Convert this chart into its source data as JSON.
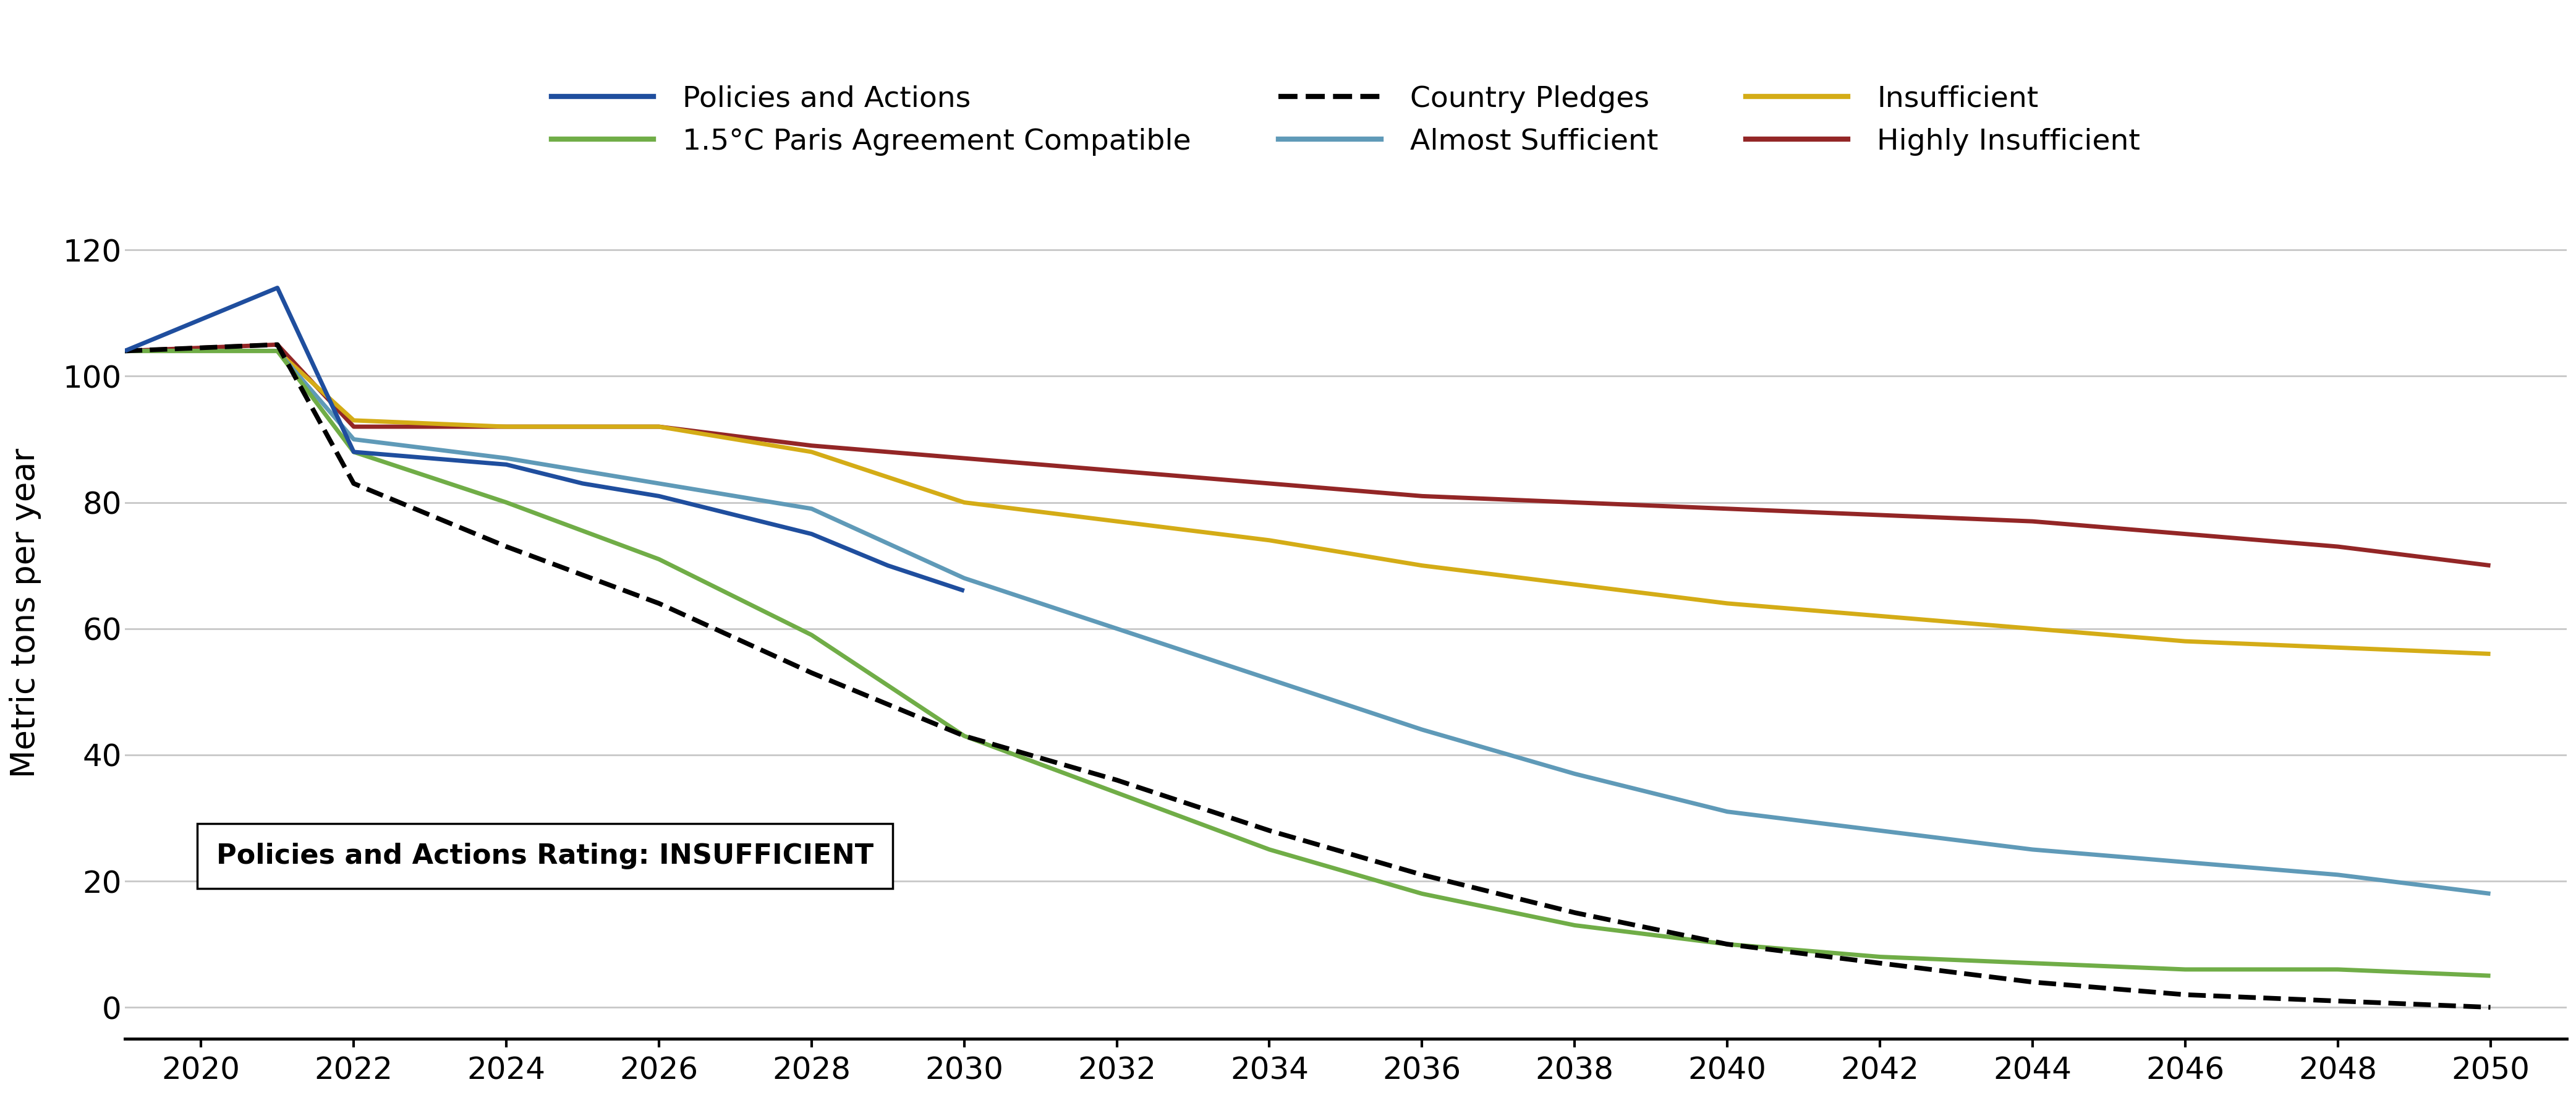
{
  "ylabel": "Metric tons per year",
  "annotation": "Policies and Actions Rating: INSUFFICIENT",
  "ylim": [
    -5,
    130
  ],
  "yticks": [
    0,
    20,
    40,
    60,
    80,
    100,
    120
  ],
  "xlim": [
    2019,
    2051
  ],
  "background_color": "#ffffff",
  "grid_color": "#c8c8c8",
  "series": {
    "policies_and_actions": {
      "label": "Policies and Actions",
      "color": "#1f4e9e",
      "linewidth": 5,
      "linestyle": "solid",
      "x": [
        2019,
        2021,
        2022,
        2023,
        2024,
        2025,
        2026,
        2027,
        2028,
        2029,
        2030
      ],
      "y": [
        104,
        114,
        88,
        87,
        86,
        83,
        81,
        78,
        75,
        70,
        66
      ]
    },
    "paris_compatible": {
      "label": "1.5°C Paris Agreement Compatible",
      "color": "#70ad47",
      "linewidth": 5,
      "linestyle": "solid",
      "x": [
        2019,
        2021,
        2022,
        2024,
        2026,
        2028,
        2030,
        2032,
        2034,
        2036,
        2038,
        2040,
        2042,
        2044,
        2046,
        2048,
        2050
      ],
      "y": [
        104,
        104,
        88,
        80,
        71,
        59,
        43,
        34,
        25,
        18,
        13,
        10,
        8,
        7,
        6,
        6,
        5
      ]
    },
    "country_pledges": {
      "label": "Country Pledges",
      "color": "#000000",
      "linewidth": 5.5,
      "linestyle": "dashed",
      "x": [
        2019,
        2021,
        2022,
        2024,
        2026,
        2028,
        2030,
        2032,
        2034,
        2036,
        2038,
        2040,
        2042,
        2044,
        2046,
        2048,
        2050
      ],
      "y": [
        104,
        105,
        83,
        73,
        64,
        53,
        43,
        36,
        28,
        21,
        15,
        10,
        7,
        4,
        2,
        1,
        0
      ]
    },
    "almost_sufficient": {
      "label": "Almost Sufficient",
      "color": "#5f9ab8",
      "linewidth": 5,
      "linestyle": "solid",
      "x": [
        2019,
        2021,
        2022,
        2024,
        2026,
        2028,
        2030,
        2032,
        2034,
        2036,
        2038,
        2040,
        2042,
        2044,
        2046,
        2048,
        2050
      ],
      "y": [
        104,
        104,
        90,
        87,
        83,
        79,
        68,
        60,
        52,
        44,
        37,
        31,
        28,
        25,
        23,
        21,
        18
      ]
    },
    "insufficient": {
      "label": "Insufficient",
      "color": "#d4ac16",
      "linewidth": 5,
      "linestyle": "solid",
      "x": [
        2019,
        2021,
        2022,
        2024,
        2026,
        2028,
        2030,
        2032,
        2034,
        2036,
        2038,
        2040,
        2042,
        2044,
        2046,
        2048,
        2050
      ],
      "y": [
        104,
        104,
        93,
        92,
        92,
        88,
        80,
        77,
        74,
        70,
        67,
        64,
        62,
        60,
        58,
        57,
        56
      ]
    },
    "highly_insufficient": {
      "label": "Highly Insufficient",
      "color": "#932626",
      "linewidth": 5,
      "linestyle": "solid",
      "x": [
        2019,
        2021,
        2022,
        2024,
        2026,
        2028,
        2030,
        2032,
        2034,
        2036,
        2038,
        2040,
        2042,
        2044,
        2046,
        2048,
        2050
      ],
      "y": [
        104,
        105,
        92,
        92,
        92,
        89,
        87,
        85,
        83,
        81,
        80,
        79,
        78,
        77,
        75,
        73,
        70
      ]
    }
  }
}
